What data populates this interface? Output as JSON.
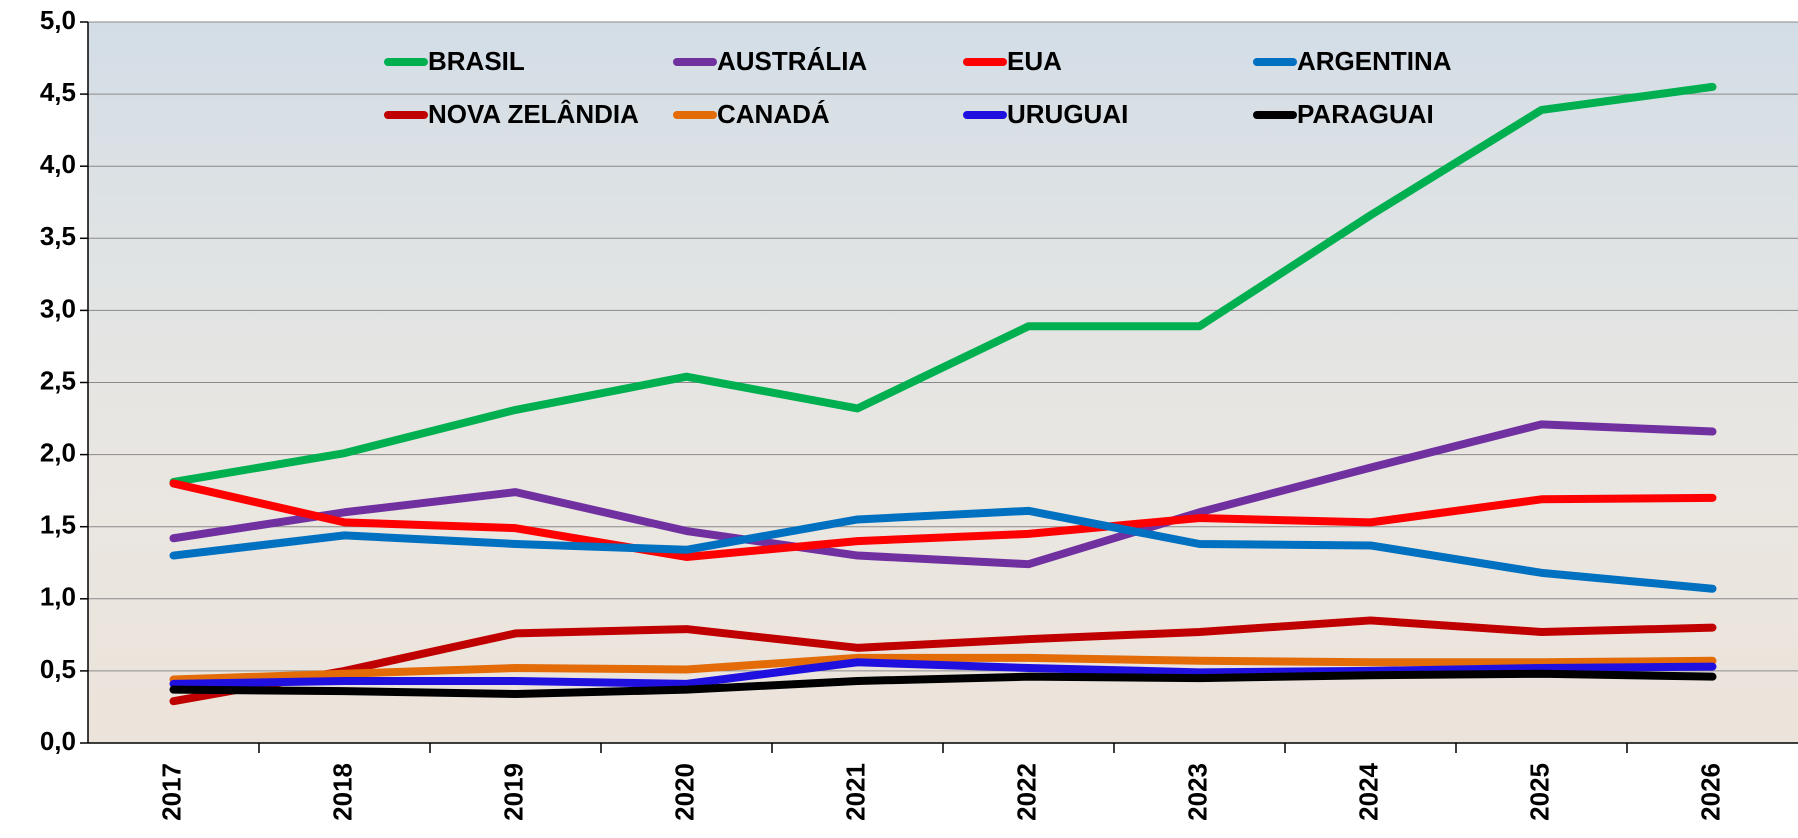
{
  "chart_data": {
    "type": "line",
    "categories": [
      "2017",
      "2018",
      "2019",
      "2020",
      "2021",
      "2022",
      "2023",
      "2024",
      "2025",
      "2026"
    ],
    "ylim": [
      0,
      5
    ],
    "yticks": [
      {
        "value": 0,
        "label": "0,0"
      },
      {
        "value": 0.5,
        "label": "0,5"
      },
      {
        "value": 1,
        "label": "1,0"
      },
      {
        "value": 1.5,
        "label": "1,5"
      },
      {
        "value": 2,
        "label": "2,0"
      },
      {
        "value": 2.5,
        "label": "2,5"
      },
      {
        "value": 3,
        "label": "3,0"
      },
      {
        "value": 3.5,
        "label": "3,5"
      },
      {
        "value": 4,
        "label": "4,0"
      },
      {
        "value": 4.5,
        "label": "4,5"
      },
      {
        "value": 5,
        "label": "5,0"
      }
    ],
    "grid": true,
    "legend": "top",
    "series": [
      {
        "name": "BRASIL",
        "color": "#00b050",
        "values": [
          1.81,
          2.01,
          2.31,
          2.54,
          2.32,
          2.89,
          2.89,
          3.66,
          4.39,
          4.55
        ]
      },
      {
        "name": "AUSTRÁLIA",
        "color": "#7030a0",
        "values": [
          1.42,
          1.6,
          1.74,
          1.47,
          1.3,
          1.24,
          1.6,
          1.91,
          2.21,
          2.16
        ]
      },
      {
        "name": "EUA",
        "color": "#ff0000",
        "values": [
          1.8,
          1.53,
          1.49,
          1.29,
          1.4,
          1.45,
          1.56,
          1.53,
          1.69,
          1.7
        ]
      },
      {
        "name": "ARGENTINA",
        "color": "#0070c0",
        "values": [
          1.3,
          1.44,
          1.38,
          1.34,
          1.55,
          1.61,
          1.38,
          1.37,
          1.18,
          1.07
        ]
      },
      {
        "name": "NOVA ZELÂNDIA",
        "color": "#c00000",
        "values": [
          0.29,
          0.5,
          0.76,
          0.79,
          0.66,
          0.72,
          0.77,
          0.85,
          0.77,
          0.8
        ]
      },
      {
        "name": "CANADÁ",
        "color": "#e36c09",
        "values": [
          0.44,
          0.48,
          0.52,
          0.51,
          0.59,
          0.59,
          0.57,
          0.56,
          0.56,
          0.57
        ]
      },
      {
        "name": "URUGUAI",
        "color": "#2010e0",
        "values": [
          0.41,
          0.43,
          0.43,
          0.41,
          0.56,
          0.52,
          0.49,
          0.5,
          0.52,
          0.53
        ]
      },
      {
        "name": "PARAGUAI",
        "color": "#000000",
        "values": [
          0.37,
          0.36,
          0.34,
          0.37,
          0.43,
          0.46,
          0.45,
          0.47,
          0.48,
          0.46
        ]
      }
    ]
  }
}
